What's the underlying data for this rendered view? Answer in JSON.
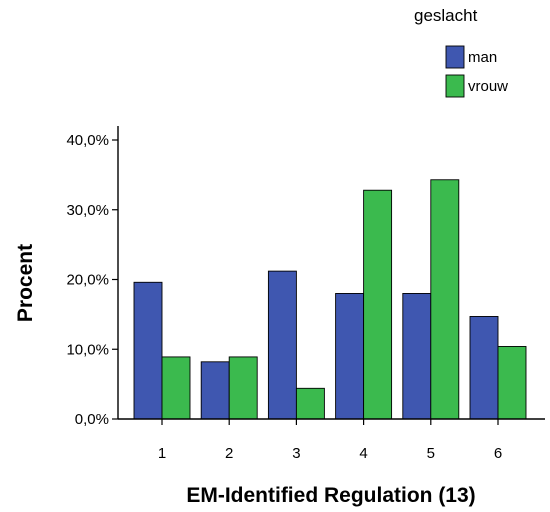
{
  "chart_data": {
    "type": "bar",
    "categories": [
      "1",
      "2",
      "3",
      "4",
      "5",
      "6"
    ],
    "series": [
      {
        "name": "man",
        "color": "#3f57b0",
        "values": [
          19.6,
          8.2,
          21.2,
          18.0,
          18.0,
          14.7
        ]
      },
      {
        "name": "vrouw",
        "color": "#3bba4e",
        "values": [
          8.9,
          8.9,
          4.4,
          32.8,
          34.3,
          10.4
        ]
      }
    ],
    "xlabel": "EM-Identified Regulation (13)",
    "ylabel": "Procent",
    "ylim": [
      0,
      40
    ],
    "yticks": [
      "0,0%",
      "10,0%",
      "20,0%",
      "30,0%",
      "40,0%"
    ],
    "legend": {
      "title": "geslacht",
      "placement": "top-right"
    },
    "grid": false
  }
}
